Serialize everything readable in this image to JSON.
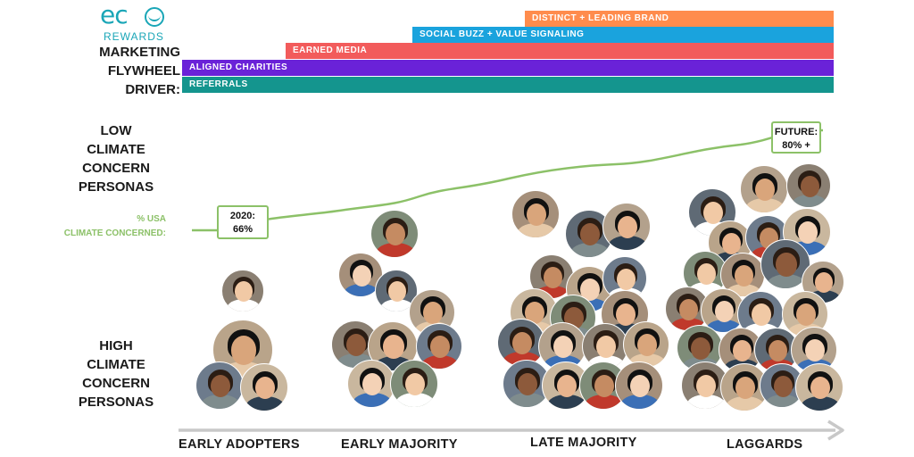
{
  "logo": {
    "word": "ec",
    "sub": "REWARDS"
  },
  "driver_label": "MARKETING\nFLYWHEEL\nDRIVER:",
  "bars": [
    {
      "label": "DISTINCT + LEADING BRAND",
      "color": "#ff8c4d"
    },
    {
      "label": "SOCIAL BUZZ + VALUE SIGNALING",
      "color": "#1aa3dd"
    },
    {
      "label": "EARNED MEDIA",
      "color": "#f25b5b"
    },
    {
      "label": "ALIGNED CHARITIES",
      "color": "#6a22d8"
    },
    {
      "label": "REFERRALS",
      "color": "#14958e"
    }
  ],
  "low_label": "LOW\nCLIMATE\nCONCERN\nPERSONAS",
  "high_label": "HIGH\nCLIMATE\nCONCERN\nPERSONAS",
  "metric_label": "%  USA\nCLIMATE CONCERNED:",
  "callout_2020": "2020:\n66%",
  "callout_future": "FUTURE:\n80% +",
  "segments": [
    "EARLY ADOPTERS",
    "EARLY MAJORITY",
    "LATE MAJORITY",
    "LAGGARDS"
  ],
  "colors": {
    "curve": "#8cc168",
    "axis": "#c8c8c8",
    "brand": "#1aa6b7"
  }
}
